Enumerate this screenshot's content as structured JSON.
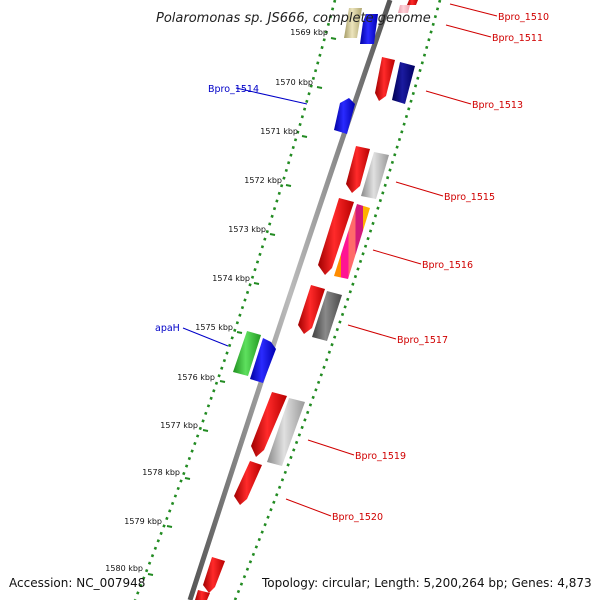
{
  "title": "Polaromonas sp. JS666, complete genome",
  "footer": {
    "accession": "Accession: NC_007948",
    "topology": "Topology: circular; Length: 5,200,264 bp; Genes: 4,873"
  },
  "ticks": [
    "1569 kbp",
    "1570 kbp",
    "1571 kbp",
    "1572 kbp",
    "1573 kbp",
    "1574 kbp",
    "1575 kbp",
    "1576 kbp",
    "1577 kbp",
    "1578 kbp",
    "1579 kbp",
    "1580 kbp"
  ],
  "gene_labels": [
    {
      "id": "label-bpro-1510",
      "text": "Bpro_1510",
      "color": "#d00000"
    },
    {
      "id": "label-bpro-1511",
      "text": "Bpro_1511",
      "color": "#d00000"
    },
    {
      "id": "label-bpro-1513",
      "text": "Bpro_1513",
      "color": "#d00000"
    },
    {
      "id": "label-bpro-1514",
      "text": "Bpro_1514",
      "color": "#0000c8"
    },
    {
      "id": "label-bpro-1515",
      "text": "Bpro_1515",
      "color": "#d00000"
    },
    {
      "id": "label-bpro-1516",
      "text": "Bpro_1516",
      "color": "#d00000"
    },
    {
      "id": "label-apah",
      "text": "apaH",
      "color": "#0000c8"
    },
    {
      "id": "label-bpro-1517",
      "text": "Bpro_1517",
      "color": "#d00000"
    },
    {
      "id": "label-bpro-1519",
      "text": "Bpro_1519",
      "color": "#d00000"
    },
    {
      "id": "label-bpro-1520",
      "text": "Bpro_1520",
      "color": "#d00000"
    }
  ],
  "colors": {
    "backbone": "#808080",
    "ring_dots": "#228b22",
    "red_gene": "#ff0000",
    "blue_gene": "#0000ff",
    "navy_gene": "#000080",
    "green_gene": "#33cc33",
    "gray_gene": "#b0b0b0",
    "dark_gray_gene": "#606060",
    "tan_gene": "#cfc79a",
    "pink_gene": "#ffb6c1"
  }
}
